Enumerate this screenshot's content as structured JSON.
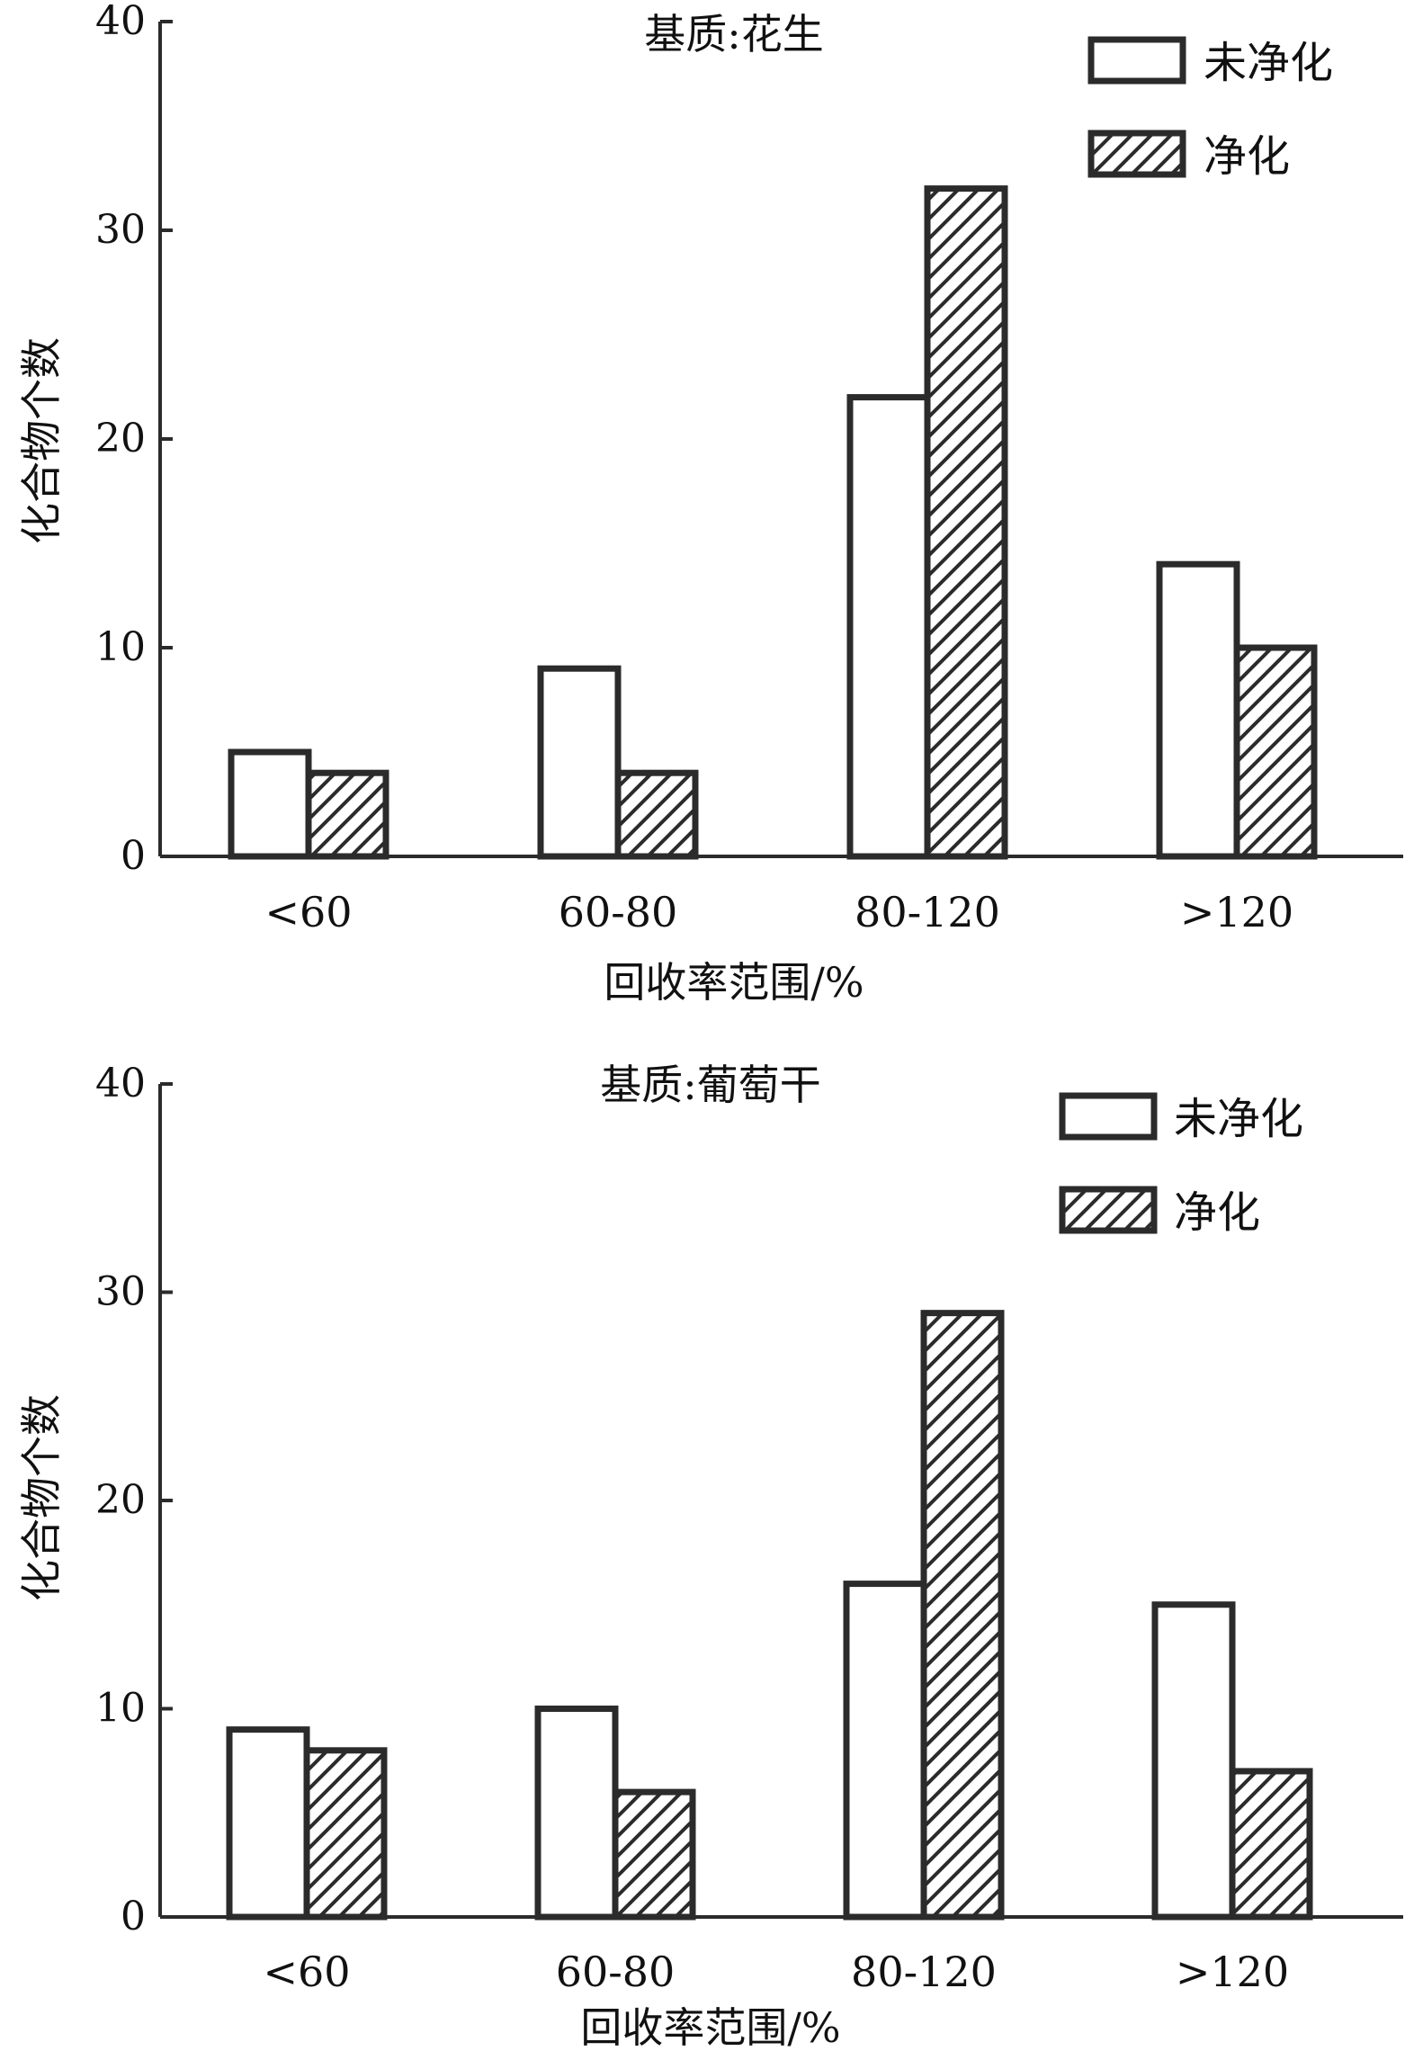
{
  "chart_data": [
    {
      "type": "bar",
      "title": "基质:花生",
      "xlabel": "回收率范围/%",
      "ylabel": "化合物个数",
      "ylim": [
        0,
        40
      ],
      "yticks": [
        "0",
        "10",
        "20",
        "30",
        "40"
      ],
      "categories": [
        "<60",
        "60-80",
        "80-120",
        ">120"
      ],
      "series": [
        {
          "name": "未净化",
          "values": [
            5,
            9,
            22,
            14
          ]
        },
        {
          "name": "净化",
          "values": [
            4,
            4,
            32,
            10
          ]
        }
      ],
      "legend_position": "top-right",
      "grid": false
    },
    {
      "type": "bar",
      "title": "基质:葡萄干",
      "xlabel": "回收率范围/%",
      "ylabel": "化合物个数",
      "ylim": [
        0,
        40
      ],
      "yticks": [
        "0",
        "10",
        "20",
        "30",
        "40"
      ],
      "categories": [
        "<60",
        "60-80",
        "80-120",
        ">120"
      ],
      "series": [
        {
          "name": "未净化",
          "values": [
            9,
            10,
            16,
            15
          ]
        },
        {
          "name": "净化",
          "values": [
            8,
            6,
            29,
            7
          ]
        }
      ],
      "legend_position": "top-right",
      "grid": false
    }
  ],
  "style": {
    "bar_stroke": "#2b2b2b",
    "bar_fill_plain": "#ffffff",
    "hatch_color": "#2b2b2b",
    "hatch_pattern": "diagonal-hatch"
  }
}
